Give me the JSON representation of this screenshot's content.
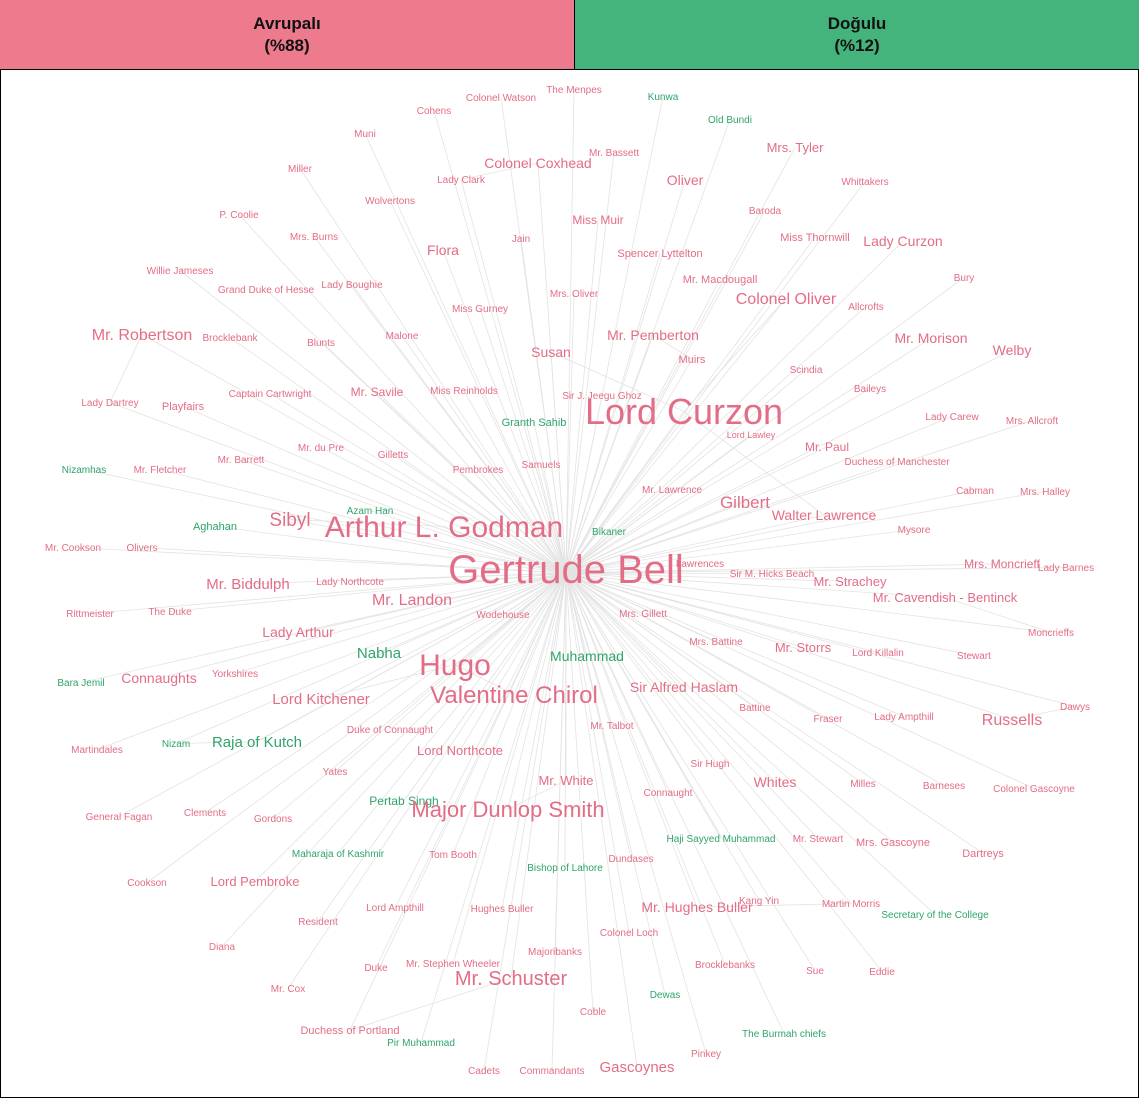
{
  "header": {
    "left": {
      "title": "Avrupalı",
      "share": "(%88)",
      "color": "#ee7a8e"
    },
    "right": {
      "title": "Doğulu",
      "share": "(%12)",
      "color": "#45b47c"
    }
  },
  "network": {
    "center": "Gertrude Bell",
    "colors": {
      "european": "#e36d86",
      "eastern": "#2fa46b",
      "edge": "#e3e3e3"
    },
    "nodes": [
      {
        "label": "Colonel Watson",
        "group": "european"
      },
      {
        "label": "The Menpes",
        "group": "european"
      },
      {
        "label": "Kunwa",
        "group": "eastern"
      },
      {
        "label": "Cohens",
        "group": "european"
      },
      {
        "label": "Old Bundi",
        "group": "eastern"
      },
      {
        "label": "Muni",
        "group": "european"
      },
      {
        "label": "Mr. Bassett",
        "group": "european"
      },
      {
        "label": "Mrs. Tyler",
        "group": "european"
      },
      {
        "label": "Colonel Coxhead",
        "group": "european"
      },
      {
        "label": "Miller",
        "group": "european"
      },
      {
        "label": "Lady Clark",
        "group": "european"
      },
      {
        "label": "Oliver",
        "group": "european"
      },
      {
        "label": "Whittakers",
        "group": "european"
      },
      {
        "label": "Wolvertons",
        "group": "european"
      },
      {
        "label": "P. Coolie",
        "group": "european"
      },
      {
        "label": "Baroda",
        "group": "european"
      },
      {
        "label": "Miss Muir",
        "group": "european"
      },
      {
        "label": "Mrs. Burns",
        "group": "european"
      },
      {
        "label": "Jain",
        "group": "european"
      },
      {
        "label": "Miss Thornwill",
        "group": "european"
      },
      {
        "label": "Lady Curzon",
        "group": "european"
      },
      {
        "label": "Flora",
        "group": "european"
      },
      {
        "label": "Spencer Lyttelton",
        "group": "european"
      },
      {
        "label": "Willie Jameses",
        "group": "european"
      },
      {
        "label": "Mr. Macdougall",
        "group": "european"
      },
      {
        "label": "Bury",
        "group": "european"
      },
      {
        "label": "Grand Duke of Hesse",
        "group": "european"
      },
      {
        "label": "Lady Boughie",
        "group": "european"
      },
      {
        "label": "Mrs. Oliver",
        "group": "european"
      },
      {
        "label": "Colonel Oliver",
        "group": "european"
      },
      {
        "label": "Allcrofts",
        "group": "european"
      },
      {
        "label": "Miss Gurney",
        "group": "european"
      },
      {
        "label": "Mr. Robertson",
        "group": "european"
      },
      {
        "label": "Brocklebank",
        "group": "european"
      },
      {
        "label": "Blunts",
        "group": "european"
      },
      {
        "label": "Malone",
        "group": "european"
      },
      {
        "label": "Mr. Pemberton",
        "group": "european"
      },
      {
        "label": "Mr. Morison",
        "group": "european"
      },
      {
        "label": "Susan",
        "group": "european"
      },
      {
        "label": "Muirs",
        "group": "european"
      },
      {
        "label": "Welby",
        "group": "european"
      },
      {
        "label": "Scindia",
        "group": "european"
      },
      {
        "label": "Lady Dartrey",
        "group": "european"
      },
      {
        "label": "Playfairs",
        "group": "european"
      },
      {
        "label": "Captain Cartwright",
        "group": "european"
      },
      {
        "label": "Mr. Savile",
        "group": "european"
      },
      {
        "label": "Miss Reinholds",
        "group": "european"
      },
      {
        "label": "Sir J. Jeegu Ghoz",
        "group": "european"
      },
      {
        "label": "Baileys",
        "group": "european"
      },
      {
        "label": "Lord Curzon",
        "group": "european"
      },
      {
        "label": "Lady Carew",
        "group": "european"
      },
      {
        "label": "Mrs. Allcroft",
        "group": "european"
      },
      {
        "label": "Granth Sahib",
        "group": "eastern"
      },
      {
        "label": "Lord Lawley",
        "group": "european"
      },
      {
        "label": "Mr. du Pre",
        "group": "european"
      },
      {
        "label": "Mr. Paul",
        "group": "european"
      },
      {
        "label": "Nizamhas",
        "group": "eastern"
      },
      {
        "label": "Mr. Fletcher",
        "group": "european"
      },
      {
        "label": "Mr. Barrett",
        "group": "european"
      },
      {
        "label": "Gilletts",
        "group": "european"
      },
      {
        "label": "Samuels",
        "group": "european"
      },
      {
        "label": "Pembrokes",
        "group": "european"
      },
      {
        "label": "Duchess of Manchester",
        "group": "european"
      },
      {
        "label": "Mr. Lawrence",
        "group": "european"
      },
      {
        "label": "Cabman",
        "group": "european"
      },
      {
        "label": "Mrs. Halley",
        "group": "european"
      },
      {
        "label": "Gilbert",
        "group": "european"
      },
      {
        "label": "Azam Han",
        "group": "eastern"
      },
      {
        "label": "Walter Lawrence",
        "group": "european"
      },
      {
        "label": "Aghahan",
        "group": "eastern"
      },
      {
        "label": "Sibyl",
        "group": "european"
      },
      {
        "label": "Arthur L. Godman",
        "group": "european"
      },
      {
        "label": "Bikaner",
        "group": "eastern"
      },
      {
        "label": "Mysore",
        "group": "european"
      },
      {
        "label": "Mr. Cookson",
        "group": "european"
      },
      {
        "label": "Olivers",
        "group": "european"
      },
      {
        "label": "Lawrences",
        "group": "european"
      },
      {
        "label": "Mrs. Moncrieff",
        "group": "european"
      },
      {
        "label": "Lady Barnes",
        "group": "european"
      },
      {
        "label": "Mr. Biddulph",
        "group": "european"
      },
      {
        "label": "Lady Northcote",
        "group": "european"
      },
      {
        "label": "Gertrude Bell",
        "group": "european"
      },
      {
        "label": "Sir M. Hicks Beach",
        "group": "european"
      },
      {
        "label": "Mr. Strachey",
        "group": "european"
      },
      {
        "label": "Mr. Cavendish - Bentinck",
        "group": "european"
      },
      {
        "label": "Rittmeister",
        "group": "european"
      },
      {
        "label": "The Duke",
        "group": "european"
      },
      {
        "label": "Mr. Landon",
        "group": "european"
      },
      {
        "label": "Wodehouse",
        "group": "european"
      },
      {
        "label": "Mrs. Gillett",
        "group": "european"
      },
      {
        "label": "Lady Arthur",
        "group": "european"
      },
      {
        "label": "Mrs. Battine",
        "group": "european"
      },
      {
        "label": "Moncrieffs",
        "group": "european"
      },
      {
        "label": "Nabha",
        "group": "eastern"
      },
      {
        "label": "Muhammad",
        "group": "eastern"
      },
      {
        "label": "Mr. Storrs",
        "group": "european"
      },
      {
        "label": "Lord Killalin",
        "group": "european"
      },
      {
        "label": "Stewart",
        "group": "european"
      },
      {
        "label": "Hugo",
        "group": "european"
      },
      {
        "label": "Bara Jemil",
        "group": "eastern"
      },
      {
        "label": "Connaughts",
        "group": "european"
      },
      {
        "label": "Yorkshires",
        "group": "european"
      },
      {
        "label": "Sir Alfred Haslam",
        "group": "european"
      },
      {
        "label": "Lord Kitchener",
        "group": "european"
      },
      {
        "label": "Valentine Chirol",
        "group": "european"
      },
      {
        "label": "Battine",
        "group": "european"
      },
      {
        "label": "Fraser",
        "group": "european"
      },
      {
        "label": "Lady Ampthill",
        "group": "european"
      },
      {
        "label": "Russells",
        "group": "european"
      },
      {
        "label": "Dawys",
        "group": "european"
      },
      {
        "label": "Mr. Talbot",
        "group": "european"
      },
      {
        "label": "Duke of Connaught",
        "group": "european"
      },
      {
        "label": "Martindales",
        "group": "european"
      },
      {
        "label": "Nizam",
        "group": "eastern"
      },
      {
        "label": "Raja of Kutch",
        "group": "eastern"
      },
      {
        "label": "Lord Northcote",
        "group": "european"
      },
      {
        "label": "Sir Hugh",
        "group": "european"
      },
      {
        "label": "Yates",
        "group": "european"
      },
      {
        "label": "Mr. White",
        "group": "european"
      },
      {
        "label": "Whites",
        "group": "european"
      },
      {
        "label": "Milles",
        "group": "european"
      },
      {
        "label": "Barneses",
        "group": "european"
      },
      {
        "label": "Colonel Gascoyne",
        "group": "european"
      },
      {
        "label": "Connaught",
        "group": "european"
      },
      {
        "label": "Pertab Singh",
        "group": "eastern"
      },
      {
        "label": "General Fagan",
        "group": "european"
      },
      {
        "label": "Clements",
        "group": "european"
      },
      {
        "label": "Gordons",
        "group": "european"
      },
      {
        "label": "Major Dunlop Smith",
        "group": "european"
      },
      {
        "label": "Haji Sayyed Muhammad",
        "group": "eastern"
      },
      {
        "label": "Mr. Stewart",
        "group": "european"
      },
      {
        "label": "Mrs. Gascoyne",
        "group": "european"
      },
      {
        "label": "Dartreys",
        "group": "european"
      },
      {
        "label": "Maharaja of Kashmir",
        "group": "eastern"
      },
      {
        "label": "Tom Booth",
        "group": "european"
      },
      {
        "label": "Dundases",
        "group": "european"
      },
      {
        "label": "Bishop of Lahore",
        "group": "eastern"
      },
      {
        "label": "Cookson",
        "group": "european"
      },
      {
        "label": "Lord Pembroke",
        "group": "european"
      },
      {
        "label": "Lord Ampthill",
        "group": "european"
      },
      {
        "label": "Hughes Buller",
        "group": "european"
      },
      {
        "label": "Mr. Hughes Buller",
        "group": "european"
      },
      {
        "label": "Kang Yin",
        "group": "european"
      },
      {
        "label": "Martin Morris",
        "group": "european"
      },
      {
        "label": "Secretary of the College",
        "group": "eastern"
      },
      {
        "label": "Resident",
        "group": "european"
      },
      {
        "label": "Colonel Loch",
        "group": "european"
      },
      {
        "label": "Diana",
        "group": "european"
      },
      {
        "label": "Majoribanks",
        "group": "european"
      },
      {
        "label": "Duke",
        "group": "european"
      },
      {
        "label": "Mr. Stephen Wheeler",
        "group": "european"
      },
      {
        "label": "Brocklebanks",
        "group": "european"
      },
      {
        "label": "Sue",
        "group": "european"
      },
      {
        "label": "Eddie",
        "group": "european"
      },
      {
        "label": "Mr. Cox",
        "group": "european"
      },
      {
        "label": "Mr. Schuster",
        "group": "european"
      },
      {
        "label": "Dewas",
        "group": "eastern"
      },
      {
        "label": "Coble",
        "group": "european"
      },
      {
        "label": "Duchess of Portland",
        "group": "european"
      },
      {
        "label": "The Burmah chiefs",
        "group": "eastern"
      },
      {
        "label": "Pir Muhammad",
        "group": "eastern"
      },
      {
        "label": "Pinkey",
        "group": "european"
      },
      {
        "label": "Cadets",
        "group": "european"
      },
      {
        "label": "Commandants",
        "group": "european"
      },
      {
        "label": "Gascoynes",
        "group": "european"
      }
    ]
  }
}
